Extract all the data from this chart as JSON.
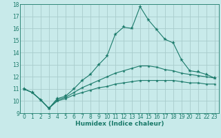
{
  "xlabel": "Humidex (Indice chaleur)",
  "bg_color": "#c8eaea",
  "line_color": "#1a7a6a",
  "grid_color": "#a8cccc",
  "xlim": [
    -0.5,
    23.5
  ],
  "ylim": [
    9,
    18
  ],
  "xticks": [
    0,
    1,
    2,
    3,
    4,
    5,
    6,
    7,
    8,
    9,
    10,
    11,
    12,
    13,
    14,
    15,
    16,
    17,
    18,
    19,
    20,
    21,
    22,
    23
  ],
  "yticks": [
    9,
    10,
    11,
    12,
    13,
    14,
    15,
    16,
    17,
    18
  ],
  "line1_x": [
    0,
    1,
    2,
    3,
    4,
    5,
    6,
    7,
    8,
    9,
    10,
    11,
    12,
    13,
    14,
    15,
    16,
    17,
    18,
    19,
    20,
    21,
    22,
    23
  ],
  "line1_y": [
    11.0,
    10.7,
    10.1,
    9.4,
    10.2,
    10.4,
    11.0,
    11.7,
    12.2,
    13.0,
    13.7,
    15.5,
    16.1,
    16.0,
    17.8,
    16.7,
    15.9,
    15.1,
    14.8,
    13.4,
    12.5,
    12.4,
    12.2,
    11.9
  ],
  "line2_x": [
    0,
    1,
    2,
    3,
    4,
    5,
    6,
    7,
    8,
    9,
    10,
    11,
    12,
    13,
    14,
    15,
    16,
    17,
    18,
    19,
    20,
    21,
    22,
    23
  ],
  "line2_y": [
    11.0,
    10.7,
    10.1,
    9.4,
    10.1,
    10.3,
    10.7,
    11.1,
    11.4,
    11.7,
    12.0,
    12.3,
    12.5,
    12.7,
    12.9,
    12.9,
    12.8,
    12.6,
    12.5,
    12.3,
    12.2,
    12.1,
    12.0,
    11.9
  ],
  "line3_x": [
    0,
    1,
    2,
    3,
    4,
    5,
    6,
    7,
    8,
    9,
    10,
    11,
    12,
    13,
    14,
    15,
    16,
    17,
    18,
    19,
    20,
    21,
    22,
    23
  ],
  "line3_y": [
    11.0,
    10.7,
    10.1,
    9.4,
    10.0,
    10.2,
    10.5,
    10.7,
    10.9,
    11.1,
    11.2,
    11.4,
    11.5,
    11.6,
    11.7,
    11.7,
    11.7,
    11.7,
    11.7,
    11.6,
    11.5,
    11.5,
    11.4,
    11.4
  ],
  "tick_fontsize": 5.5,
  "xlabel_fontsize": 6.5,
  "marker_size": 3.5
}
